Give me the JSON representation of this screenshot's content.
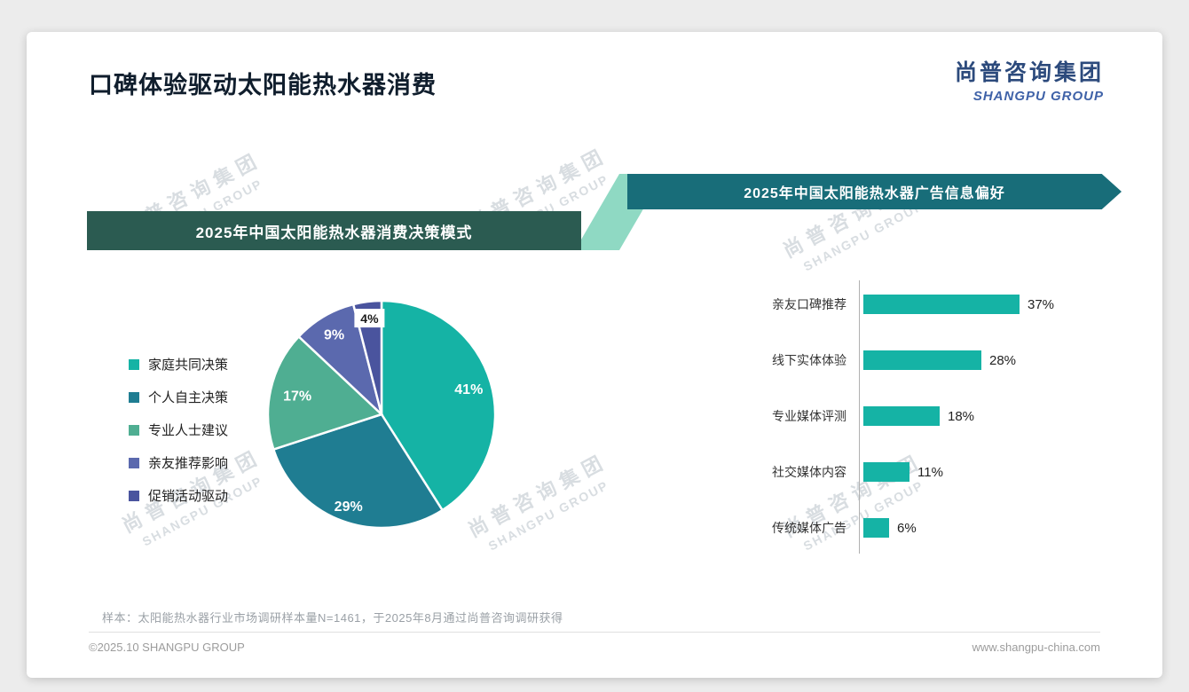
{
  "page": {
    "title": "口碑体验驱动太阳能热水器消费",
    "logo_cn": "尚普咨询集团",
    "logo_en": "SHANGPU GROUP",
    "watermark_cn": "尚普咨询集团",
    "watermark_en": "SHANGPU GROUP",
    "sample_note": "样本：太阳能热水器行业市场调研样本量N=1461，于2025年8月通过尚普咨询调研获得",
    "footer_left": "©2025.10 SHANGPU GROUP",
    "footer_right": "www.shangpu-china.com"
  },
  "chart_data": [
    {
      "type": "pie",
      "title": "2025年中国太阳能热水器消费决策模式",
      "labels": [
        "家庭共同决策",
        "个人自主决策",
        "专业人士建议",
        "亲友推荐影响",
        "促销活动驱动"
      ],
      "values": [
        41,
        29,
        17,
        9,
        4
      ],
      "data_labels": [
        "41%",
        "29%",
        "17%",
        "9%",
        "4%"
      ],
      "colors": [
        "#15b3a5",
        "#1f7d92",
        "#4fae92",
        "#5b69ae",
        "#4a549e"
      ],
      "legend_position": "left",
      "start_angle": "top",
      "direction": "clockwise"
    },
    {
      "type": "bar",
      "title": "2025年中国太阳能热水器广告信息偏好",
      "orientation": "horizontal",
      "categories": [
        "亲友口碑推荐",
        "线下实体体验",
        "专业媒体评测",
        "社交媒体内容",
        "传统媒体广告"
      ],
      "values": [
        37,
        28,
        18,
        11,
        6
      ],
      "value_labels": [
        "37%",
        "28%",
        "18%",
        "11%",
        "6%"
      ],
      "bar_color": "#15b3a5",
      "xlim": [
        0,
        40
      ],
      "grid": false
    }
  ]
}
